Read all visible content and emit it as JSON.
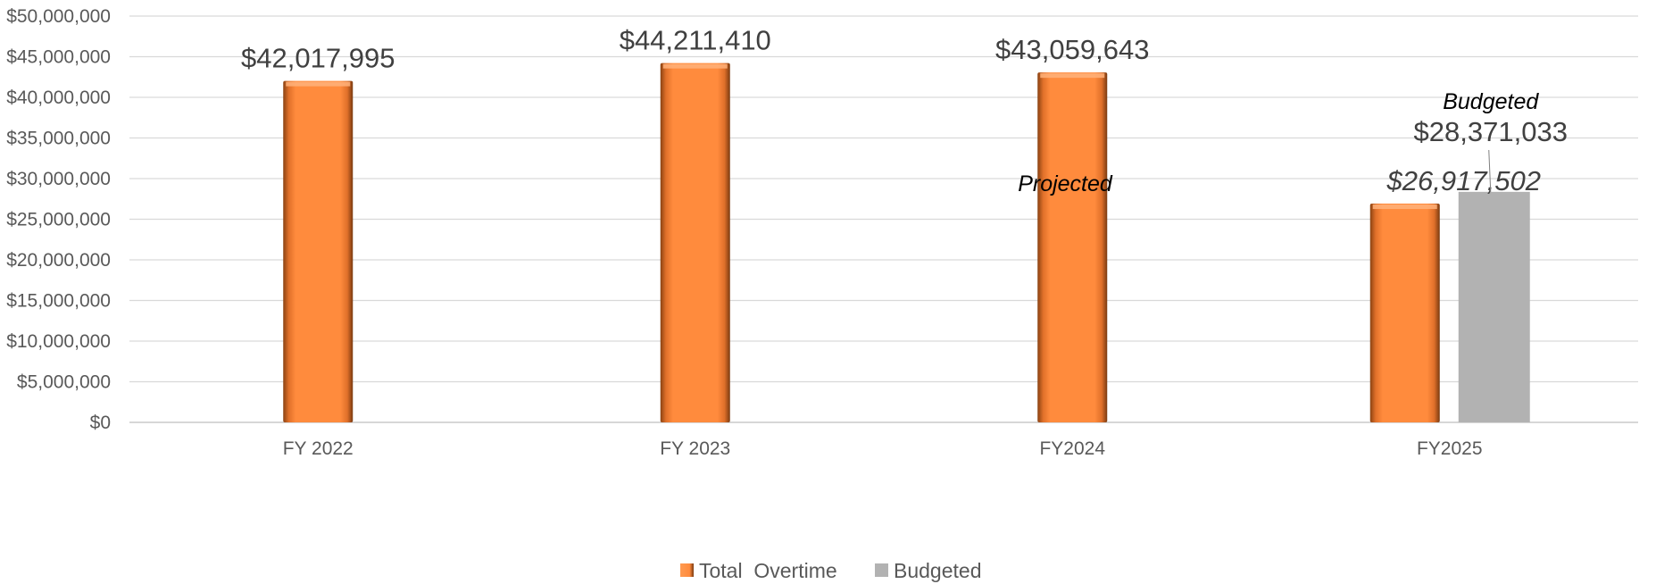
{
  "colors": {
    "total_overtime": "#FF8B3D",
    "total_overtime_dark": "#7A3A10",
    "total_overtime_light": "#FFB27A",
    "budgeted": "#B2B2B2",
    "grid": "#D9D9D9",
    "axis": "#BFBFBF"
  },
  "chart_data": {
    "type": "bar",
    "categories": [
      "FY 2022",
      "FY 2023",
      "FY2024",
      "FY2025"
    ],
    "series": [
      {
        "name": "Total  Overtime",
        "values": [
          42017995,
          44211410,
          43059643,
          26917502
        ]
      },
      {
        "name": "Budgeted",
        "values": [
          null,
          null,
          null,
          28371033
        ]
      }
    ],
    "data_labels": {
      "total_overtime": [
        "$42,017,995",
        "$44,211,410",
        "$43,059,643",
        "$26,917,502"
      ],
      "budgeted": "$28,371,033"
    },
    "annotations": {
      "projected": "Projected",
      "budgeted": "Budgeted"
    },
    "y_ticks": [
      "$0",
      "$5,000,000",
      "$10,000,000",
      "$15,000,000",
      "$20,000,000",
      "$25,000,000",
      "$30,000,000",
      "$35,000,000",
      "$40,000,000",
      "$45,000,000",
      "$50,000,000"
    ],
    "ylim": [
      0,
      50000000
    ],
    "ytick_step": 5000000,
    "grid": true,
    "legend": {
      "position": "bottom"
    }
  }
}
